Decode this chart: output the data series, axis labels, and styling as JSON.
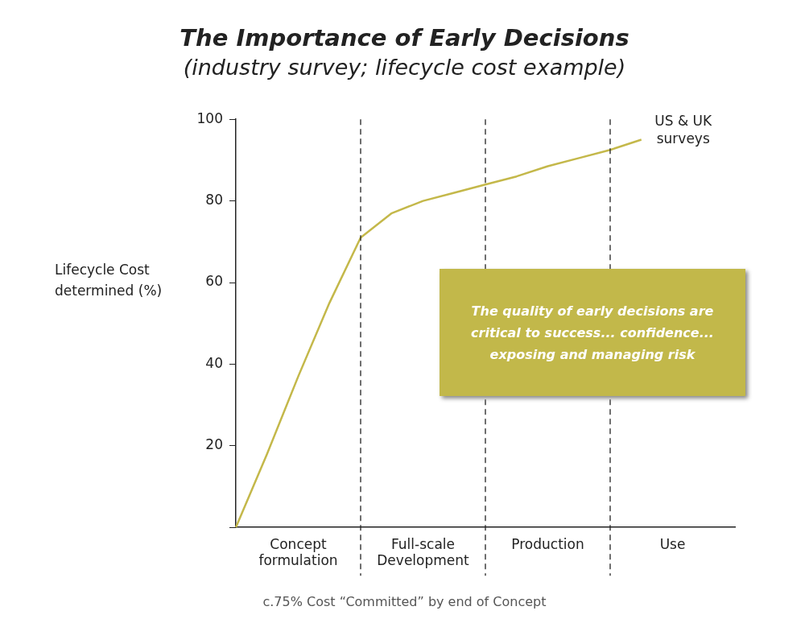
{
  "chart_data": {
    "type": "line",
    "title": "The Importance of Early Decisions",
    "subtitle": "(industry survey; lifecycle cost example)",
    "ylabel": "Lifecycle Cost determined (%)",
    "categories": [
      null,
      null,
      "Concept\nformulation",
      null,
      null,
      null,
      "Full-scale\nDevelopment",
      null,
      null,
      null,
      "Production",
      null,
      null,
      null,
      "Use",
      null,
      null
    ],
    "series": [
      {
        "name": "US & UK surveys",
        "color": "#c4b84a",
        "values": [
          0,
          18,
          37,
          55,
          71,
          77,
          80,
          82,
          84,
          86,
          88.5,
          90.5,
          92.5,
          95,
          null,
          null,
          null
        ]
      }
    ],
    "ylim": [
      0,
      100
    ],
    "yticks": [
      {
        "value": 0,
        "label": null
      },
      20,
      40,
      60,
      80,
      100
    ],
    "annotations": [
      "The quality of early decisions are critical to success... confidence... exposing and managing risk",
      "c.75% Cost “Committed” by end of Concept"
    ],
    "grid": "x",
    "legend": false,
    "marker": "none",
    "line_style": "solid"
  }
}
